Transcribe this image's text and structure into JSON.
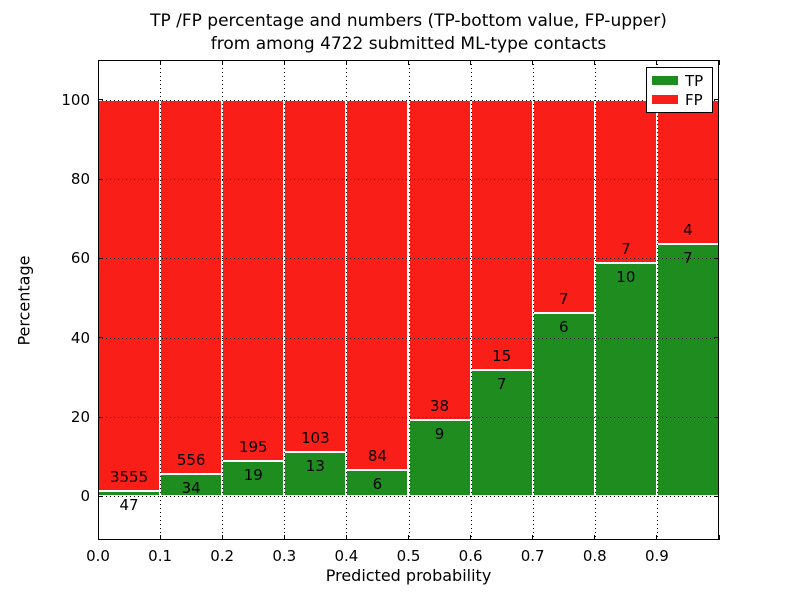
{
  "title": {
    "line1": "TP /FP percentage and numbers (TP-bottom value, FP-upper)",
    "line2": "from among 4722 submitted ML-type contacts"
  },
  "axes": {
    "xlabel": "Predicted probability",
    "ylabel": "Percentage",
    "x_ticks": [
      "0.0",
      "0.1",
      "0.2",
      "0.3",
      "0.4",
      "0.5",
      "0.6",
      "0.7",
      "0.8",
      "0.9"
    ],
    "y_ticks": [
      "0",
      "20",
      "40",
      "60",
      "80",
      "100"
    ]
  },
  "legend": {
    "items": [
      {
        "label": "TP",
        "color": "#1f8c1f"
      },
      {
        "label": "FP",
        "color": "#fa1e19"
      }
    ]
  },
  "chart_data": {
    "type": "bar",
    "stacked": true,
    "title": "TP /FP percentage and numbers (TP-bottom value, FP-upper) from among 4722 submitted ML-type contacts",
    "xlabel": "Predicted probability",
    "ylabel": "Percentage",
    "total_contacts": 4722,
    "bin_edges": [
      0.0,
      0.1,
      0.2,
      0.3,
      0.4,
      0.5,
      0.6,
      0.7,
      0.8,
      0.9,
      1.0
    ],
    "series": [
      {
        "name": "TP",
        "color": "#1f8c1f",
        "counts": [
          47,
          34,
          19,
          13,
          6,
          9,
          7,
          6,
          10,
          7
        ],
        "percent": [
          1.3,
          5.76,
          8.88,
          11.21,
          6.67,
          19.15,
          31.82,
          46.15,
          58.82,
          63.64
        ]
      },
      {
        "name": "FP",
        "color": "#fa1e19",
        "counts": [
          3555,
          556,
          195,
          103,
          84,
          38,
          15,
          7,
          7,
          4
        ],
        "percent": [
          98.7,
          94.24,
          91.12,
          88.79,
          93.33,
          80.85,
          68.18,
          53.85,
          41.18,
          36.36
        ]
      }
    ],
    "bar_edge_color": "#ffffff",
    "xlim": [
      0.0,
      1.0
    ],
    "ylim": [
      -11,
      110
    ],
    "grid": true,
    "grid_style": "dotted",
    "legend_position": "upper right"
  }
}
